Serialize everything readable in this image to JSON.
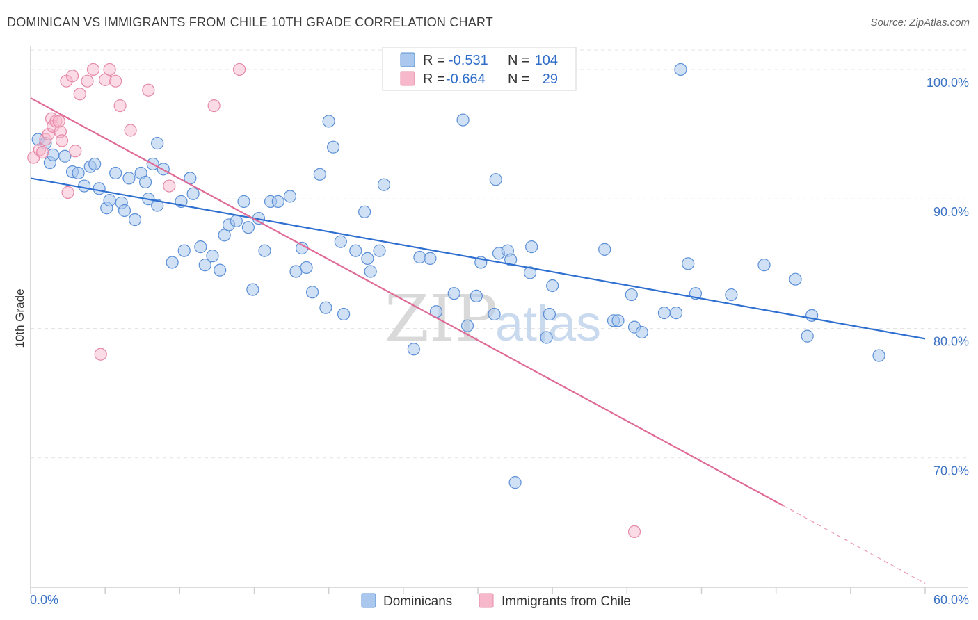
{
  "header": {
    "title": "DOMINICAN VS IMMIGRANTS FROM CHILE 10TH GRADE CORRELATION CHART",
    "source": "Source: ZipAtlas.com"
  },
  "watermark": {
    "zip": "ZIP",
    "atlas": "atlas"
  },
  "legend": {
    "r_label": "R =",
    "n_label": "N =",
    "rows": [
      {
        "r": "-0.531",
        "n": "104"
      },
      {
        "r": "-0.664",
        "n": "29"
      }
    ]
  },
  "colors": {
    "blue_fill": "#aac8ee",
    "blue_stroke": "#5b8fd6",
    "blue_line": "#2f6fd0",
    "pink_fill": "#f7b8cb",
    "pink_stroke": "#e58aa8",
    "pink_line": "#e06a96",
    "grid": "#e3e3e3",
    "axis_text": "#3a72c4"
  },
  "chart_data": {
    "type": "scatter",
    "title": "DOMINICAN VS IMMIGRANTS FROM CHILE 10TH GRADE CORRELATION CHART",
    "xlabel": "",
    "ylabel": "10th Grade",
    "xlim": [
      0,
      60
    ],
    "ylim": [
      60,
      101.5
    ],
    "x_tick_labels": [
      "0.0%",
      "60.0%"
    ],
    "y_ticks": [
      100,
      90,
      80,
      70
    ],
    "y_tick_labels": [
      "100.0%",
      "90.0%",
      "80.0%",
      "70.0%"
    ],
    "grid": true,
    "legend_position": "top-center",
    "series": [
      {
        "name": "Dominicans",
        "r": -0.531,
        "n": 104,
        "trend": {
          "x0": 0,
          "y0": 91.6,
          "x1": 60,
          "y1": 79.2
        },
        "points": [
          [
            0.5,
            94.6
          ],
          [
            1.0,
            94.3
          ],
          [
            1.3,
            92.8
          ],
          [
            1.5,
            93.4
          ],
          [
            2.3,
            93.3
          ],
          [
            2.8,
            92.1
          ],
          [
            3.2,
            92.0
          ],
          [
            3.6,
            91.0
          ],
          [
            4.0,
            92.5
          ],
          [
            4.3,
            92.7
          ],
          [
            4.6,
            90.8
          ],
          [
            5.1,
            89.3
          ],
          [
            5.3,
            89.9
          ],
          [
            5.7,
            92.0
          ],
          [
            6.1,
            89.7
          ],
          [
            6.3,
            89.1
          ],
          [
            6.6,
            91.6
          ],
          [
            7.0,
            88.4
          ],
          [
            7.4,
            92.0
          ],
          [
            7.7,
            91.3
          ],
          [
            7.9,
            90.0
          ],
          [
            8.2,
            92.7
          ],
          [
            8.5,
            89.5
          ],
          [
            8.9,
            92.3
          ],
          [
            9.5,
            85.1
          ],
          [
            10.1,
            89.8
          ],
          [
            10.3,
            86.0
          ],
          [
            10.7,
            91.6
          ],
          [
            10.9,
            90.4
          ],
          [
            11.4,
            86.3
          ],
          [
            11.7,
            84.9
          ],
          [
            12.2,
            85.6
          ],
          [
            12.7,
            84.5
          ],
          [
            13.0,
            87.2
          ],
          [
            13.3,
            88.0
          ],
          [
            13.8,
            88.3
          ],
          [
            14.3,
            89.8
          ],
          [
            14.6,
            87.8
          ],
          [
            14.9,
            83.0
          ],
          [
            15.3,
            88.5
          ],
          [
            15.7,
            86.0
          ],
          [
            16.1,
            89.8
          ],
          [
            16.6,
            89.8
          ],
          [
            17.4,
            90.2
          ],
          [
            17.8,
            84.4
          ],
          [
            18.2,
            86.2
          ],
          [
            18.5,
            84.7
          ],
          [
            18.9,
            82.8
          ],
          [
            19.4,
            91.9
          ],
          [
            19.8,
            81.6
          ],
          [
            20.3,
            94.0
          ],
          [
            20.8,
            86.7
          ],
          [
            21.0,
            81.1
          ],
          [
            21.8,
            86.0
          ],
          [
            22.4,
            89.0
          ],
          [
            22.6,
            85.4
          ],
          [
            22.8,
            84.4
          ],
          [
            23.4,
            86.0
          ],
          [
            23.7,
            91.1
          ],
          [
            24.4,
            100.0
          ],
          [
            25.5,
            100.0
          ],
          [
            25.7,
            78.4
          ],
          [
            26.1,
            85.5
          ],
          [
            26.8,
            85.4
          ],
          [
            27.2,
            81.3
          ],
          [
            28.4,
            82.7
          ],
          [
            29.0,
            96.1
          ],
          [
            29.3,
            80.2
          ],
          [
            29.9,
            82.5
          ],
          [
            30.2,
            85.1
          ],
          [
            31.4,
            85.8
          ],
          [
            31.1,
            81.1
          ],
          [
            32.0,
            86.0
          ],
          [
            32.2,
            85.3
          ],
          [
            32.5,
            68.1
          ],
          [
            33.6,
            86.3
          ],
          [
            33.5,
            84.3
          ],
          [
            34.8,
            81.1
          ],
          [
            35.0,
            83.3
          ],
          [
            34.6,
            79.3
          ],
          [
            38.5,
            86.1
          ],
          [
            39.1,
            80.6
          ],
          [
            39.4,
            80.6
          ],
          [
            40.3,
            82.6
          ],
          [
            40.5,
            80.1
          ],
          [
            41.0,
            79.7
          ],
          [
            42.5,
            81.2
          ],
          [
            43.3,
            81.2
          ],
          [
            43.6,
            100.0
          ],
          [
            44.1,
            85.0
          ],
          [
            44.6,
            82.7
          ],
          [
            47.0,
            82.6
          ],
          [
            49.2,
            84.9
          ],
          [
            51.3,
            83.8
          ],
          [
            52.1,
            79.4
          ],
          [
            52.4,
            81.0
          ],
          [
            56.9,
            77.9
          ],
          [
            30.0,
            100.0
          ],
          [
            25.1,
            100.0
          ],
          [
            20.0,
            96.0
          ],
          [
            8.5,
            94.3
          ],
          [
            31.2,
            91.5
          ]
        ]
      },
      {
        "name": "Immigrants from Chile",
        "r": -0.664,
        "n": 29,
        "trend": {
          "x0": 0,
          "y0": 97.8,
          "x1": 50.5,
          "y1": 66.3,
          "dash_x1": 60,
          "dash_y1": 60.3
        },
        "points": [
          [
            0.2,
            93.2
          ],
          [
            0.6,
            93.8
          ],
          [
            1.0,
            94.6
          ],
          [
            1.2,
            95.0
          ],
          [
            1.4,
            96.2
          ],
          [
            1.5,
            95.6
          ],
          [
            1.7,
            96.0
          ],
          [
            2.0,
            95.2
          ],
          [
            2.1,
            94.5
          ],
          [
            2.4,
            99.1
          ],
          [
            2.5,
            90.5
          ],
          [
            2.8,
            99.5
          ],
          [
            3.0,
            93.7
          ],
          [
            3.3,
            98.1
          ],
          [
            3.8,
            99.1
          ],
          [
            4.2,
            100.0
          ],
          [
            4.7,
            78.0
          ],
          [
            5.0,
            99.2
          ],
          [
            5.3,
            100.0
          ],
          [
            5.7,
            99.1
          ],
          [
            6.0,
            97.2
          ],
          [
            6.7,
            95.3
          ],
          [
            7.9,
            98.4
          ],
          [
            9.3,
            91.0
          ],
          [
            12.3,
            97.2
          ],
          [
            14.0,
            100.0
          ],
          [
            40.5,
            64.3
          ],
          [
            0.8,
            93.6
          ],
          [
            1.9,
            96.0
          ]
        ]
      }
    ]
  },
  "bottom_legend": [
    "Dominicans",
    "Immigrants from Chile"
  ]
}
